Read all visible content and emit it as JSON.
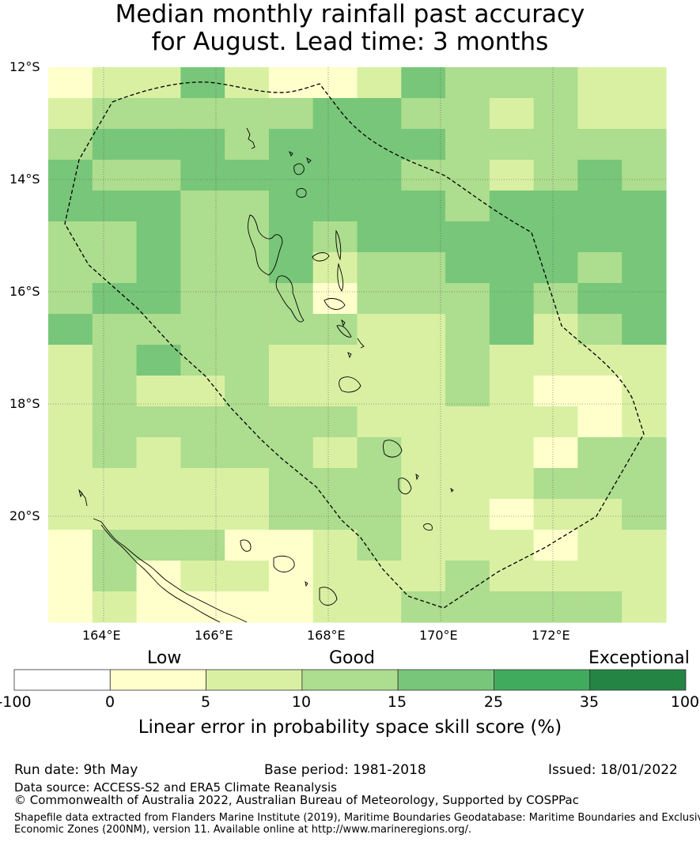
{
  "title": {
    "line1": "Median monthly rainfall past accuracy",
    "line2": "for August. Lead time: 3 months"
  },
  "map": {
    "lat_labels": [
      "12°S",
      "14°S",
      "16°S",
      "18°S",
      "20°S"
    ],
    "lon_labels": [
      "164°E",
      "166°E",
      "168°E",
      "170°E",
      "172°E"
    ],
    "lon_range": [
      163.0,
      174.0
    ],
    "lat_range": [
      -21.9,
      -12.0
    ],
    "cell_size_deg": 0.833,
    "grid_lines": true,
    "eez_boundary_style": "dashed",
    "skill_grid": [
      [
        1,
        2,
        2,
        4,
        2,
        1,
        1,
        2,
        4,
        3,
        3,
        3,
        2,
        2
      ],
      [
        2,
        3,
        3,
        3,
        3,
        3,
        4,
        4,
        3,
        3,
        2,
        3,
        2,
        2
      ],
      [
        3,
        4,
        4,
        4,
        3,
        4,
        4,
        4,
        4,
        3,
        3,
        3,
        3,
        3
      ],
      [
        4,
        3,
        3,
        4,
        4,
        4,
        4,
        4,
        3,
        3,
        2,
        3,
        4,
        3
      ],
      [
        4,
        4,
        4,
        3,
        3,
        4,
        4,
        4,
        4,
        3,
        4,
        4,
        4,
        4
      ],
      [
        3,
        3,
        4,
        3,
        3,
        4,
        3,
        4,
        4,
        4,
        4,
        4,
        4,
        4
      ],
      [
        3,
        3,
        4,
        3,
        3,
        4,
        2,
        3,
        3,
        4,
        4,
        4,
        3,
        4
      ],
      [
        3,
        4,
        4,
        3,
        3,
        3,
        1,
        3,
        3,
        3,
        4,
        3,
        4,
        4
      ],
      [
        4,
        3,
        3,
        3,
        3,
        3,
        3,
        2,
        2,
        3,
        4,
        2,
        3,
        4
      ],
      [
        2,
        3,
        4,
        3,
        3,
        2,
        2,
        2,
        2,
        3,
        2,
        2,
        2,
        2
      ],
      [
        2,
        3,
        2,
        2,
        3,
        2,
        2,
        2,
        2,
        3,
        2,
        1,
        1,
        2
      ],
      [
        2,
        3,
        3,
        3,
        3,
        3,
        3,
        2,
        2,
        2,
        2,
        2,
        1,
        2
      ],
      [
        2,
        3,
        2,
        3,
        3,
        3,
        2,
        3,
        2,
        2,
        2,
        1,
        3,
        3
      ],
      [
        2,
        2,
        2,
        2,
        2,
        3,
        3,
        3,
        2,
        2,
        2,
        3,
        3,
        3
      ],
      [
        2,
        2,
        2,
        2,
        2,
        3,
        3,
        3,
        2,
        2,
        1,
        2,
        2,
        3
      ],
      [
        1,
        3,
        3,
        3,
        1,
        1,
        2,
        3,
        2,
        2,
        2,
        1,
        2,
        2
      ],
      [
        1,
        3,
        1,
        2,
        2,
        1,
        2,
        2,
        2,
        3,
        2,
        2,
        2,
        2
      ],
      [
        1,
        2,
        1,
        1,
        1,
        1,
        2,
        2,
        3,
        3,
        3,
        3,
        3,
        2
      ]
    ]
  },
  "colorbar": {
    "words": {
      "low": "Low",
      "good": "Good",
      "exceptional": "Exceptional"
    },
    "ticks": [
      "-100",
      "0",
      "5",
      "10",
      "15",
      "25",
      "35",
      "100"
    ],
    "bins": [
      {
        "from": -100,
        "to": 0,
        "color": "#ffffff"
      },
      {
        "from": 0,
        "to": 5,
        "color": "#ffffcc"
      },
      {
        "from": 5,
        "to": 10,
        "color": "#d9f0a3"
      },
      {
        "from": 10,
        "to": 15,
        "color": "#addd8e"
      },
      {
        "from": 15,
        "to": 25,
        "color": "#78c679"
      },
      {
        "from": 25,
        "to": 35,
        "color": "#41ab5d"
      },
      {
        "from": 35,
        "to": 100,
        "color": "#238443"
      }
    ],
    "title": "Linear error in probability space skill score (%)"
  },
  "footer": {
    "run_date": "Run date: 9th May",
    "base_period": "Base period: 1981-2018",
    "issued": "Issued: 18/01/2022",
    "data_source": "Data source: ACCESS-S2 and ERA5 Climate Reanalysis",
    "copyright": "© Commonwealth of Australia 2022, Australian Bureau of Meteorology, Supported by COSPPac",
    "shapefile_line1": "Shapefile data extracted from Flanders Marine Institute (2019), Maritime Boundaries Geodatabase: Maritime Boundaries and Exclusive",
    "shapefile_line2": "Economic Zones (200NM), version 11. Available online at http://www.marineregions.org/."
  }
}
